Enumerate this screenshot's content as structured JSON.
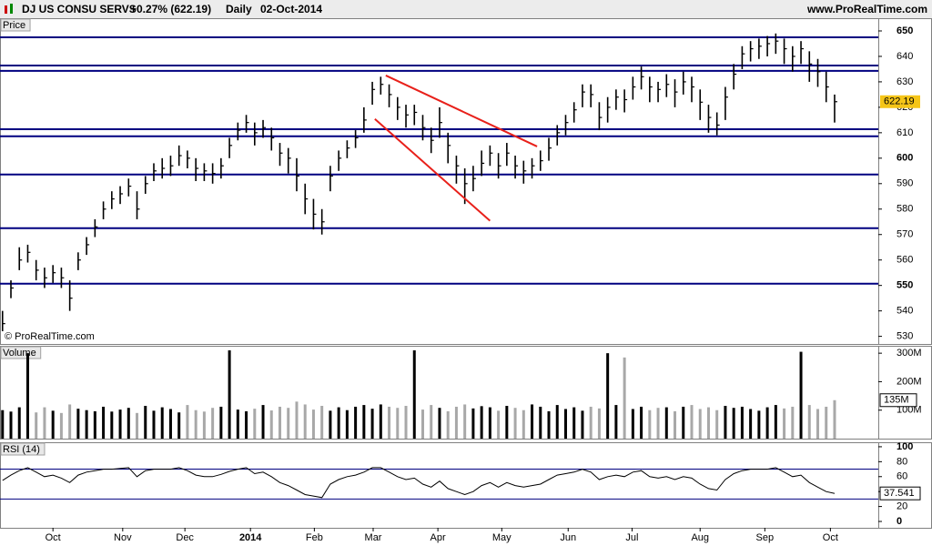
{
  "header": {
    "instrument": "DJ US CONSU SERVS",
    "change": "+0.27% (622.19)",
    "period": "Daily",
    "date": "02-Oct-2014",
    "site": "www.ProRealTime.com"
  },
  "watermark": "© ProRealTime.com",
  "chart_data": [
    {
      "type": "ohlc",
      "title": "Price",
      "color": "#000000",
      "high": [
        540,
        552,
        565,
        566,
        560,
        557,
        558,
        557,
        552,
        563,
        569,
        576,
        583,
        587,
        589,
        592,
        587,
        593,
        598,
        600,
        601,
        605,
        603,
        600,
        598,
        598,
        600,
        608,
        614,
        617,
        614,
        615,
        612,
        606,
        604,
        600,
        590,
        584,
        580,
        597,
        603,
        607,
        611,
        620,
        630,
        632,
        629,
        624,
        621,
        621,
        617,
        612,
        620,
        610,
        601,
        596,
        597,
        603,
        605,
        602,
        606,
        601,
        599,
        600,
        603,
        608,
        613,
        617,
        622,
        629,
        629,
        622,
        624,
        627,
        627,
        632,
        636,
        632,
        630,
        633,
        631,
        634,
        632,
        627,
        621,
        618,
        628,
        637,
        644,
        646,
        647,
        648,
        649,
        647,
        644,
        646,
        642,
        639,
        634,
        625
      ],
      "low": [
        532,
        545,
        556,
        559,
        552,
        549,
        551,
        549,
        540,
        556,
        562,
        569,
        576,
        580,
        582,
        585,
        576,
        586,
        591,
        592,
        593,
        597,
        596,
        591,
        591,
        590,
        592,
        600,
        607,
        610,
        605,
        608,
        603,
        597,
        594,
        587,
        578,
        572,
        570,
        587,
        595,
        600,
        604,
        610,
        621,
        625,
        620,
        615,
        612,
        613,
        607,
        602,
        608,
        598,
        590,
        582,
        587,
        593,
        597,
        592,
        597,
        592,
        590,
        592,
        595,
        599,
        605,
        609,
        614,
        620,
        620,
        611,
        614,
        619,
        618,
        623,
        627,
        622,
        622,
        624,
        620,
        625,
        622,
        615,
        610,
        609,
        615,
        627,
        635,
        638,
        639,
        640,
        641,
        637,
        634,
        637,
        630,
        628,
        622,
        614
      ],
      "close": [
        535,
        549,
        560,
        563,
        556,
        553,
        555,
        553,
        545,
        560,
        566,
        573,
        580,
        584,
        586,
        589,
        580,
        590,
        595,
        596,
        597,
        601,
        600,
        596,
        595,
        594,
        597,
        605,
        611,
        614,
        610,
        612,
        608,
        602,
        600,
        593,
        584,
        578,
        575,
        593,
        600,
        604,
        608,
        615,
        627,
        629,
        625,
        620,
        617,
        618,
        612,
        607,
        614,
        605,
        597,
        590,
        592,
        598,
        602,
        597,
        602,
        597,
        595,
        597,
        599,
        604,
        610,
        614,
        619,
        626,
        625,
        616,
        620,
        624,
        623,
        628,
        632,
        628,
        627,
        629,
        626,
        630,
        628,
        622,
        616,
        613,
        624,
        633,
        641,
        643,
        644,
        645,
        646,
        643,
        640,
        643,
        637,
        634,
        628,
        622.19
      ],
      "xlim": [
        -0.3,
        104.2
      ],
      "ylim": [
        527,
        655
      ],
      "yticks": [
        530,
        540,
        550,
        560,
        570,
        580,
        590,
        600,
        610,
        620,
        630,
        640,
        650
      ],
      "levels": [
        647.5,
        636.4,
        634.3,
        611.4,
        608.6,
        593.6,
        572.5,
        550.7
      ],
      "level_color": "#000080",
      "trendlines": [
        {
          "x": [
            45.6,
            63.6
          ],
          "y": [
            632.5,
            604.6
          ]
        },
        {
          "x": [
            44.3,
            58.0
          ],
          "y": [
            615.4,
            575.4
          ]
        }
      ],
      "trendline_color": "#e8201a",
      "last_color": "#f5c518"
    },
    {
      "type": "bar",
      "title": "Volume",
      "up_color": "#000000",
      "down_color": "#a8a8a8",
      "values": [
        100,
        95,
        110,
        300,
        92,
        110,
        98,
        90,
        120,
        105,
        100,
        96,
        112,
        95,
        102,
        108,
        90,
        115,
        98,
        110,
        104,
        92,
        118,
        100,
        95,
        108,
        112,
        310,
        102,
        96,
        105,
        118,
        99,
        112,
        108,
        130,
        120,
        102,
        115,
        98,
        110,
        100,
        112,
        118,
        105,
        120,
        112,
        108,
        115,
        310,
        102,
        118,
        108,
        96,
        112,
        120,
        106,
        114,
        110,
        98,
        115,
        108,
        100,
        120,
        112,
        96,
        118,
        104,
        110,
        98,
        112,
        106,
        300,
        118,
        285,
        104,
        112,
        100,
        108,
        110,
        96,
        112,
        118,
        104,
        110,
        100,
        115,
        108,
        112,
        104,
        98,
        110,
        118,
        106,
        112,
        305,
        118,
        104,
        112,
        135
      ],
      "last_value_label": "135M",
      "xlim": [
        -0.3,
        104.2
      ],
      "ylim": [
        0,
        326
      ],
      "yticks": [
        {
          "value": 100,
          "label": "100M"
        },
        {
          "value": 200,
          "label": "200M"
        },
        {
          "value": 300,
          "label": "300M"
        }
      ]
    },
    {
      "type": "line",
      "title": "RSI (14)",
      "color": "#000000",
      "values": [
        55,
        62,
        68,
        72,
        66,
        60,
        62,
        58,
        52,
        62,
        66,
        68,
        70,
        70,
        71,
        72,
        60,
        68,
        70,
        70,
        70,
        72,
        68,
        62,
        60,
        60,
        63,
        67,
        70,
        72,
        64,
        66,
        60,
        52,
        48,
        42,
        36,
        34,
        32,
        50,
        56,
        60,
        62,
        66,
        72,
        72,
        66,
        60,
        56,
        58,
        50,
        46,
        54,
        44,
        40,
        36,
        40,
        48,
        52,
        46,
        52,
        48,
        46,
        48,
        50,
        56,
        62,
        64,
        66,
        70,
        66,
        56,
        60,
        62,
        60,
        66,
        68,
        60,
        58,
        60,
        56,
        60,
        58,
        50,
        44,
        42,
        56,
        64,
        68,
        70,
        70,
        70,
        72,
        66,
        60,
        62,
        52,
        46,
        40,
        37.541
      ],
      "levels": [
        30,
        70
      ],
      "level_color": "#000080",
      "xlim": [
        -0.3,
        104.2
      ],
      "ylim": [
        -8.5,
        106
      ],
      "yticks": [
        0,
        20,
        40,
        60,
        80,
        100
      ],
      "xticks": [
        {
          "value": 6,
          "label": "Oct"
        },
        {
          "value": 14.3,
          "label": "Nov"
        },
        {
          "value": 21.7,
          "label": "Dec"
        },
        {
          "value": 29.5,
          "label": "2014"
        },
        {
          "value": 37.1,
          "label": "Feb"
        },
        {
          "value": 44.1,
          "label": "Mar"
        },
        {
          "value": 51.8,
          "label": "Apr"
        },
        {
          "value": 59.4,
          "label": "May"
        },
        {
          "value": 67.3,
          "label": "Jun"
        },
        {
          "value": 74.9,
          "label": "Jul"
        },
        {
          "value": 83,
          "label": "Aug"
        },
        {
          "value": 90.7,
          "label": "Sep"
        },
        {
          "value": 98.5,
          "label": "Oct"
        }
      ]
    }
  ]
}
